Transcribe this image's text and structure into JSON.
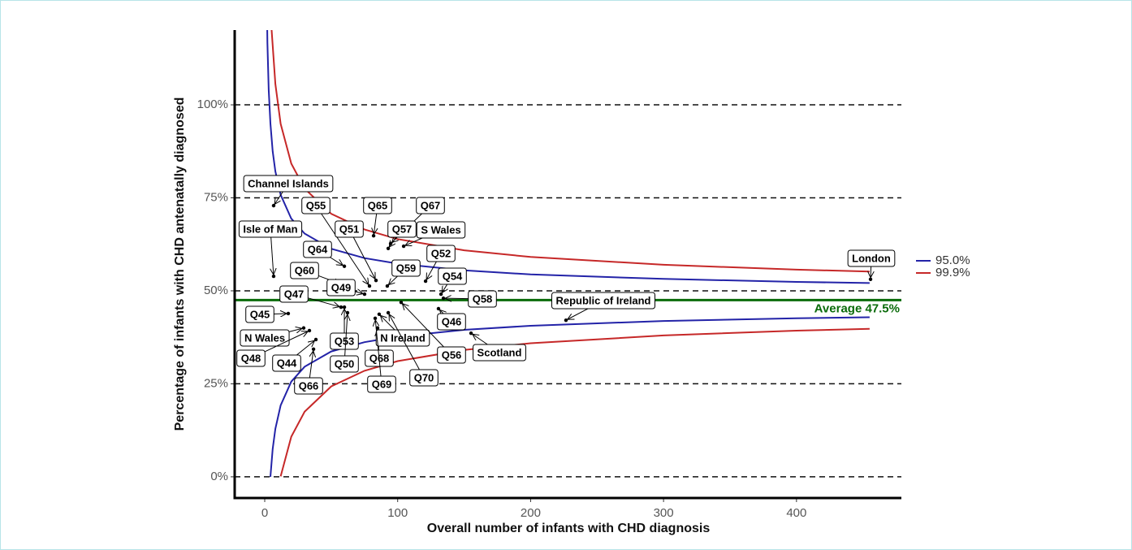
{
  "chart_data": {
    "type": "scatter",
    "x_label": "Overall number of infants with CHD diagnosis",
    "y_label": "Percentage of infants with CHD antenatally diagnosed",
    "xlim": [
      -22.6,
      478.9
    ],
    "ylim": [
      -5.7,
      120.1
    ],
    "xticks": [
      0,
      100,
      200,
      300,
      400
    ],
    "yticks": [
      {
        "value": 0,
        "label": "0%"
      },
      {
        "value": 25,
        "label": "25%"
      },
      {
        "value": 50,
        "label": "50%"
      },
      {
        "value": 75,
        "label": "75%"
      },
      {
        "value": 100,
        "label": "100%"
      }
    ],
    "grid": "dashed",
    "legend": "right",
    "average": {
      "value": 47.5,
      "label": "Average 47.5%",
      "color": "#0a6b0a"
    },
    "points": {
      "color": "#000000",
      "labels": [
        "Channel Islands",
        "Isle of Man",
        "Q55",
        "Q65",
        "Q67",
        "Q57",
        "S Wales",
        "Q51",
        "Q64",
        "Q52",
        "Q59",
        "Q60",
        "Q49",
        "Q47",
        "Q54",
        "Q58",
        "Q45",
        "N Wales",
        "Q48",
        "Q44",
        "Q66",
        "Q53",
        "Q50",
        "Q68",
        "N Ireland",
        "Q69",
        "Q70",
        "Q56",
        "Q46",
        "Scotland",
        "Republic of Ireland",
        "London"
      ],
      "x": [
        6.7,
        6.7,
        78.8,
        81.9,
        94.7,
        92.9,
        104.5,
        83.7,
        59.9,
        121.0,
        92.2,
        58.0,
        75.1,
        57.4,
        132.6,
        134.4,
        17.7,
        29.3,
        33.6,
        38.5,
        36.7,
        59.9,
        62.3,
        84.9,
        86.1,
        83.1,
        92.9,
        102.6,
        130.7,
        155.2,
        226.6,
        455.7
      ],
      "values": [
        72.9,
        53.9,
        51.3,
        64.8,
        62.7,
        61.4,
        62.0,
        52.8,
        56.6,
        52.6,
        51.3,
        51.7,
        49.1,
        45.6,
        49.1,
        48.0,
        43.9,
        40.0,
        39.3,
        36.9,
        34.3,
        45.6,
        44.1,
        40.0,
        43.7,
        42.6,
        44.1,
        46.9,
        45.2,
        38.6,
        42.1,
        53.1
      ]
    },
    "series": [
      {
        "name": "95.0%",
        "color": "#2323a8",
        "x": [
          1,
          2,
          3,
          4.25,
          6,
          8,
          12,
          20,
          30,
          50,
          75,
          100,
          150,
          200,
          300,
          400,
          455
        ],
        "upper": [
          145.4,
          116.7,
          104.0,
          95.0,
          87.5,
          82.1,
          75.8,
          69.4,
          65.4,
          61.3,
          58.8,
          57.3,
          55.5,
          54.4,
          53.2,
          52.4,
          52.1
        ],
        "lower": [
          null,
          null,
          null,
          0.0,
          7.5,
          12.9,
          19.2,
          25.6,
          29.6,
          33.7,
          36.2,
          37.7,
          39.5,
          40.6,
          41.9,
          42.6,
          42.9
        ]
      },
      {
        "name": "99.9%",
        "color": "#c62828",
        "x": [
          4,
          5,
          8,
          12,
          20,
          30,
          50,
          75,
          100,
          150,
          200,
          300,
          400,
          455
        ],
        "upper": [
          129.7,
          121.0,
          105.6,
          94.9,
          84.2,
          77.5,
          70.7,
          66.5,
          63.9,
          60.9,
          59.1,
          57.0,
          55.7,
          55.2
        ],
        "lower": [
          null,
          null,
          null,
          0.1,
          10.8,
          17.5,
          24.3,
          28.5,
          31.1,
          34.1,
          35.9,
          38.0,
          39.3,
          39.8
        ]
      }
    ]
  }
}
